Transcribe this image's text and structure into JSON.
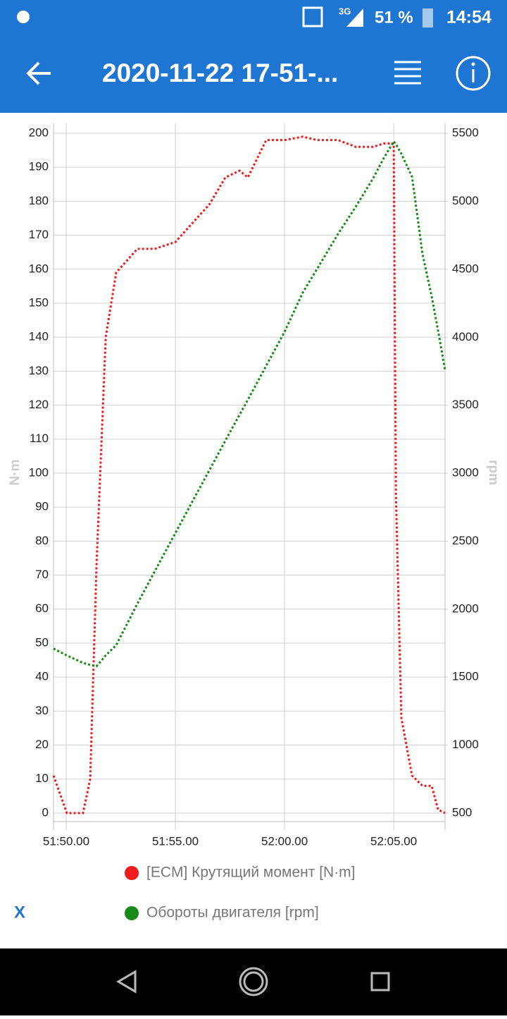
{
  "status_bar": {
    "network": "3G",
    "battery": "51 %",
    "time": "14:54"
  },
  "app_bar": {
    "title": "2020-11-22 17-51-..."
  },
  "chart_data": {
    "type": "line",
    "x": [
      3109.42,
      3110.03,
      3110.77,
      3111.1,
      3111.39,
      3111.81,
      3112.29,
      3113.26,
      3114.06,
      3115.0,
      3115.84,
      3116.55,
      3117.29,
      3117.94,
      3118.32,
      3119.16,
      3120.0,
      3120.84,
      3121.48,
      3122.45,
      3123.26,
      3124.06,
      3124.55,
      3125.0,
      3125.1,
      3125.35,
      3125.84,
      3126.32,
      3126.74,
      3127.03,
      3127.35
    ],
    "xlim": [
      3109.42,
      3127.35
    ],
    "xticks": [
      {
        "value": 3110,
        "label": "51:50.00"
      },
      {
        "value": 3115,
        "label": "51:55.00"
      },
      {
        "value": 3120,
        "label": "52:00.00"
      },
      {
        "value": 3125,
        "label": "52:05.00"
      }
    ],
    "ylim": [
      -2.5,
      202.9
    ],
    "yticks": [
      0,
      10,
      20,
      30,
      40,
      50,
      60,
      70,
      80,
      90,
      100,
      110,
      120,
      130,
      140,
      150,
      160,
      170,
      180,
      190,
      200
    ],
    "y2lim": [
      438,
      5573
    ],
    "y2ticks": [
      500,
      1000,
      1500,
      2000,
      2500,
      3000,
      3500,
      4000,
      4500,
      5000,
      5500
    ],
    "ylabel": "N·m",
    "y2label": "rpm",
    "grid": true,
    "series": [
      {
        "name": "[ECM] Крутящий момент [N·m]",
        "color": "#ee1c1c",
        "values": [
          11,
          0,
          0,
          10,
          73,
          140,
          159,
          166,
          166,
          168,
          174,
          179,
          187,
          189,
          187,
          198,
          198,
          199,
          198,
          198,
          196,
          196,
          197,
          197,
          94,
          28,
          11,
          8,
          8,
          1,
          0
        ]
      },
      {
        "name": "Обороты двигателя [rpm]",
        "color": "#178a17",
        "axis": "y2",
        "values": [
          1710,
          1660,
          1605,
          1590,
          1580,
          1660,
          1735,
          2040,
          2280,
          2560,
          2810,
          3020,
          3240,
          3430,
          3540,
          3790,
          4040,
          4330,
          4500,
          4760,
          4960,
          5170,
          5320,
          5440,
          5420,
          5350,
          5180,
          4610,
          4300,
          4050,
          3760
        ]
      }
    ]
  },
  "footer": {
    "clear_button": "X"
  }
}
